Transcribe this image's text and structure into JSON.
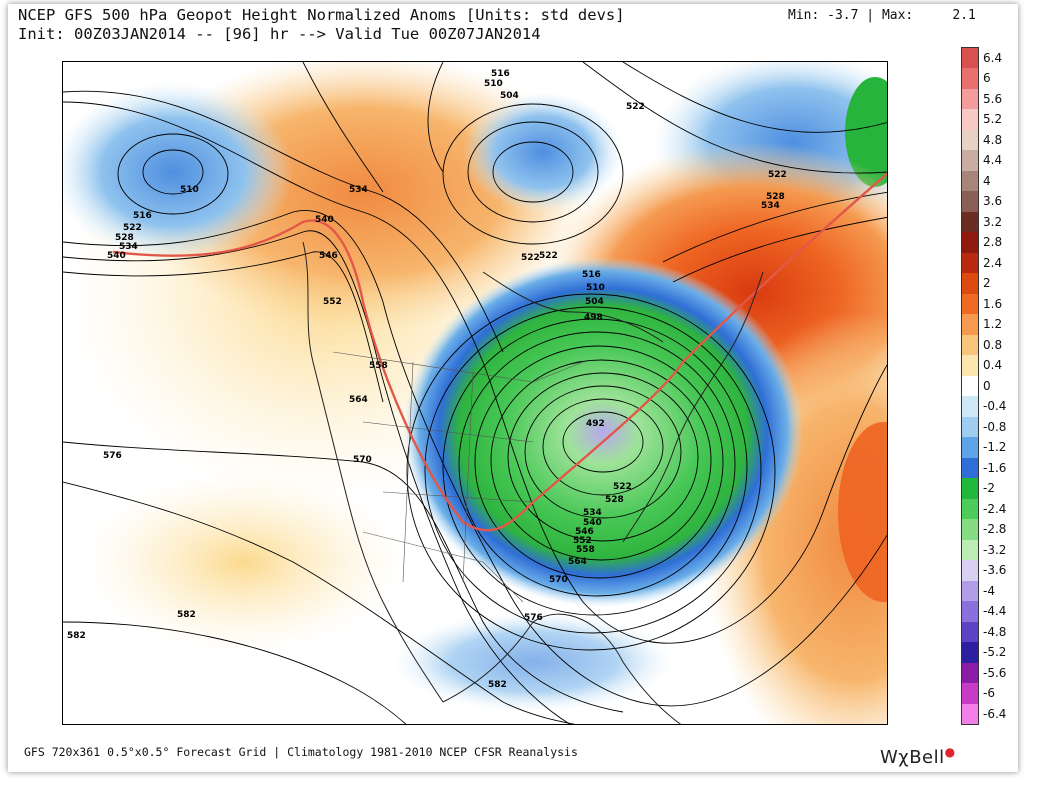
{
  "header": {
    "title_line1": "NCEP GFS 500 hPa Geopot Height Normalized Anoms [Units: std devs]",
    "title_line2": "Init: 00Z03JAN2014 -- [96] hr --> Valid Tue 00Z07JAN2014",
    "min_label": "Min:",
    "min_value": "-3.7",
    "max_label": "Max:",
    "max_value": "2.1"
  },
  "legend": {
    "labels": [
      "6.4",
      "6",
      "5.6",
      "5.2",
      "4.8",
      "4.4",
      "4",
      "3.6",
      "3.2",
      "2.8",
      "2.4",
      "2",
      "1.6",
      "1.2",
      "0.8",
      "0.4",
      "0",
      "-0.4",
      "-0.8",
      "-1.2",
      "-1.6",
      "-2",
      "-2.4",
      "-2.8",
      "-3.2",
      "-3.6",
      "-4",
      "-4.4",
      "-4.8",
      "-5.2",
      "-5.6",
      "-6",
      "-6.4"
    ],
    "colors": [
      "#d8504f",
      "#e8716f",
      "#f29c9c",
      "#f7c8c6",
      "#e7d0c6",
      "#c9ada2",
      "#a8857a",
      "#8a5f56",
      "#6b2c22",
      "#8e1a0e",
      "#b82a10",
      "#dc4a12",
      "#ef6a24",
      "#f59a50",
      "#f9c47c",
      "#fde5ae",
      "#ffffff",
      "#cfe8f6",
      "#9fcdf0",
      "#5fa4e6",
      "#2f6ed6",
      "#1fb83a",
      "#4ecc5a",
      "#86dc82",
      "#bdebb6",
      "#d8d0f2",
      "#b29ee8",
      "#8a70dc",
      "#5a44c4",
      "#2c1fa0",
      "#8a1da6",
      "#c63cc6",
      "#f27ee8"
    ]
  },
  "contour_labels": [
    "516",
    "510",
    "504",
    "522",
    "534",
    "528",
    "540",
    "546",
    "552",
    "558",
    "564",
    "570",
    "576",
    "582",
    "498",
    "492"
  ],
  "footer": {
    "info": "GFS 720x361 0.5°x0.5° Forecast Grid | Climatology 1981-2010 NCEP CFSR Reanalysis",
    "brand": "WχBell"
  }
}
